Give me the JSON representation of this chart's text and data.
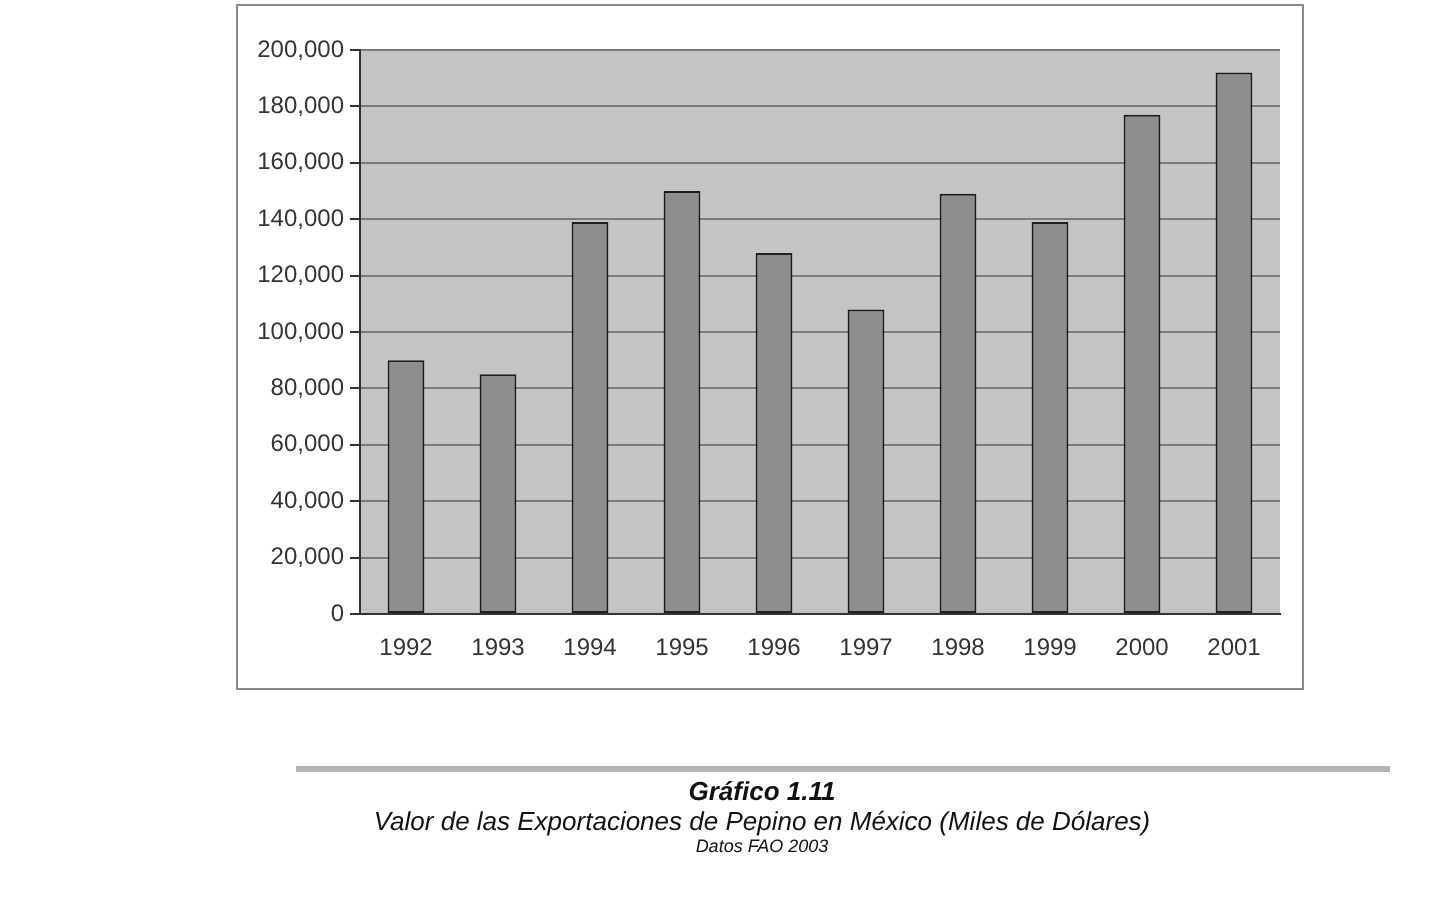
{
  "chart_data": {
    "type": "bar",
    "title": "Gráfico 1.11",
    "subtitle": "Valor de las Exportaciones de Pepino en México (Miles de Dólares)",
    "annotations": [
      "Datos FAO 2003"
    ],
    "categories": [
      "1992",
      "1993",
      "1994",
      "1995",
      "1996",
      "1997",
      "1998",
      "1999",
      "2000",
      "2001"
    ],
    "values": [
      90000,
      85000,
      139000,
      150000,
      128000,
      108000,
      149000,
      139000,
      177000,
      192000
    ],
    "color": "#8e8e8e",
    "ylim": [
      0,
      200000
    ],
    "yticks": [
      {
        "value": 0,
        "label": "0"
      },
      {
        "value": 20000,
        "label": "20,000"
      },
      {
        "value": 40000,
        "label": "40,000"
      },
      {
        "value": 60000,
        "label": "60,000"
      },
      {
        "value": 80000,
        "label": "80,000"
      },
      {
        "value": 100000,
        "label": "100,000"
      },
      {
        "value": 120000,
        "label": "120,000"
      },
      {
        "value": 140000,
        "label": "140,000"
      },
      {
        "value": 160000,
        "label": "160,000"
      },
      {
        "value": 180000,
        "label": "180,000"
      },
      {
        "value": 200000,
        "label": "200,000"
      }
    ],
    "grid": "y"
  }
}
